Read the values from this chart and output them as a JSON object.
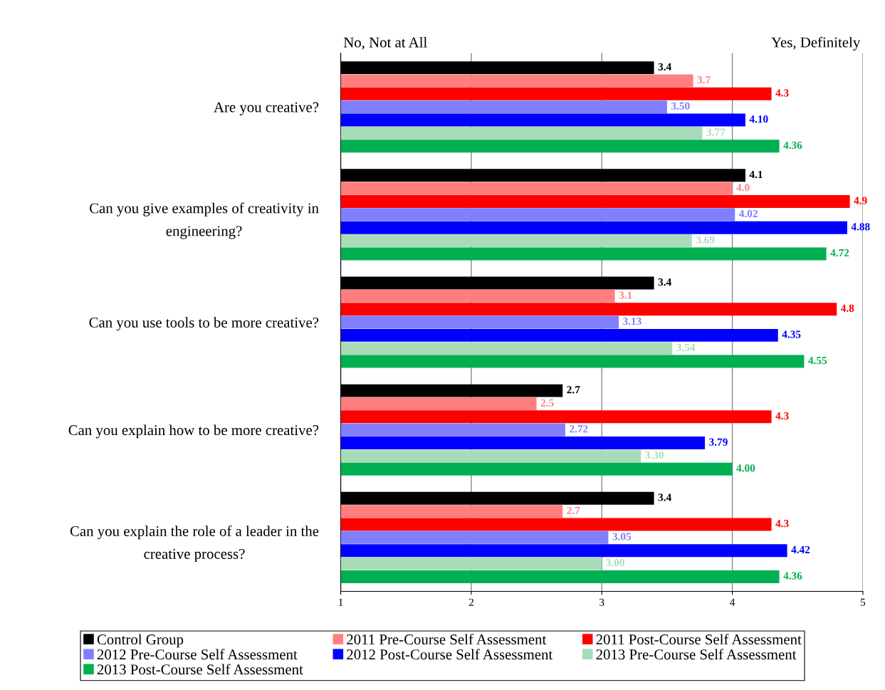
{
  "chart_data": {
    "type": "bar",
    "orientation": "horizontal",
    "categories": [
      "Are you creative?",
      "Can you give examples of creativity in\nengineering?",
      "Can you use tools to be more creative?",
      "Can you explain how to be more creative?",
      "Can you explain the role of a leader in the\ncreative process?"
    ],
    "series": [
      {
        "name": "Control Group",
        "color": "#000000",
        "values": [
          3.4,
          4.1,
          3.4,
          2.7,
          3.4
        ],
        "value_labels": [
          "3.4",
          "4.1",
          "3.4",
          "2.7",
          "3.4"
        ]
      },
      {
        "name": "2011 Pre-Course Self Assessment",
        "color": "#ff7f7f",
        "values": [
          3.7,
          4.0,
          3.1,
          2.5,
          2.7
        ],
        "value_labels": [
          "3.7",
          "4.0",
          "3.1",
          "2.5",
          "2.7"
        ]
      },
      {
        "name": "2011 Post-Course Self Assessment",
        "color": "#ff0000",
        "values": [
          4.3,
          4.9,
          4.8,
          4.3,
          4.3
        ],
        "value_labels": [
          "4.3",
          "4.9",
          "4.8",
          "4.3",
          "4.3"
        ]
      },
      {
        "name": "2012 Pre-Course Self Assessment",
        "color": "#7f7fff",
        "values": [
          3.5,
          4.02,
          3.13,
          2.72,
          3.05
        ],
        "value_labels": [
          "3.50",
          "4.02",
          "3.13",
          "2.72",
          "3.05"
        ]
      },
      {
        "name": "2012 Post-Course Self Assessment",
        "color": "#0000ff",
        "values": [
          4.1,
          4.88,
          4.35,
          3.79,
          4.42
        ],
        "value_labels": [
          "4.10",
          "4.88",
          "4.35",
          "3.79",
          "4.42"
        ]
      },
      {
        "name": "2013 Pre-Course Self Assessment",
        "color": "#a8dcb8",
        "values": [
          3.77,
          3.69,
          3.54,
          3.3,
          3.0
        ],
        "value_labels": [
          "3.77",
          "3.69",
          "3.54",
          "3.30",
          "3.00"
        ]
      },
      {
        "name": "2013 Post-Course Self Assessment",
        "color": "#00b050",
        "values": [
          4.36,
          4.72,
          4.55,
          4.0,
          4.36
        ],
        "value_labels": [
          "4.36",
          "4.72",
          "4.55",
          "4.00",
          "4.36"
        ]
      }
    ],
    "xlim": [
      1,
      5
    ],
    "xticks": [
      1,
      2,
      3,
      4,
      5
    ],
    "grid": "x",
    "legend": "bottom",
    "annotations": [
      "No, Not at All",
      "Yes, Definitely"
    ]
  }
}
